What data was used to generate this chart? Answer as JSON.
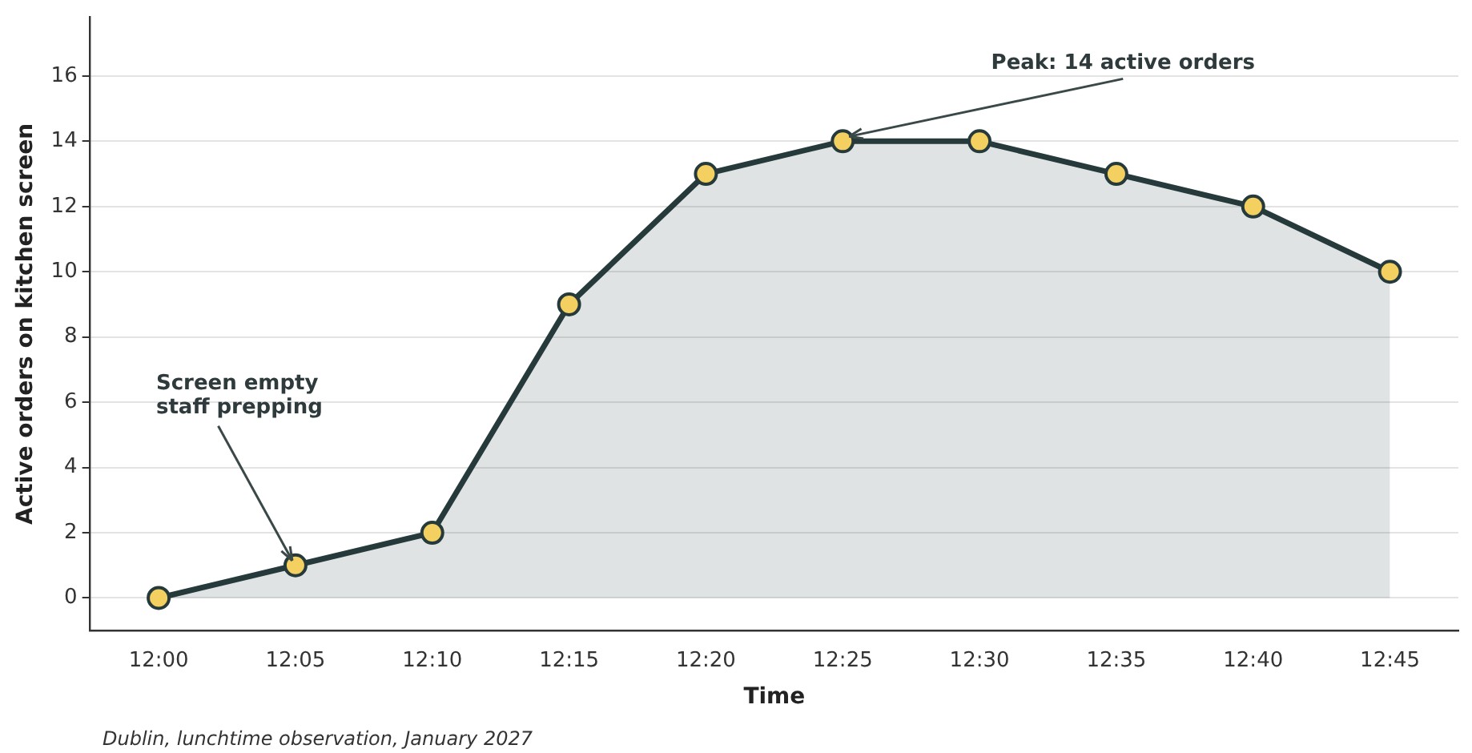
{
  "chart_data": {
    "type": "area",
    "xlabel": "Time",
    "ylabel": "Active orders on kitchen screen",
    "categories": [
      "12:00",
      "12:05",
      "12:10",
      "12:15",
      "12:20",
      "12:25",
      "12:30",
      "12:35",
      "12:40",
      "12:45"
    ],
    "series": [
      {
        "color": "#263a3b",
        "values": [
          0,
          1,
          2,
          9,
          13,
          14,
          14,
          13,
          12,
          10
        ]
      }
    ],
    "ylim": [
      -1,
      17.8
    ],
    "yticks": [
      0,
      2,
      4,
      6,
      8,
      10,
      12,
      14,
      16
    ],
    "grid": "y",
    "marker": "circle",
    "line_style": "solid",
    "legend": false,
    "annotations": [
      {
        "text": "Screen empty\nstaff prepping",
        "x": "12:05",
        "y": 1
      },
      {
        "text": "Peak: 14 active orders",
        "x": "12:25",
        "y": 14
      },
      "Dublin, lunchtime observation, January 2027"
    ]
  }
}
